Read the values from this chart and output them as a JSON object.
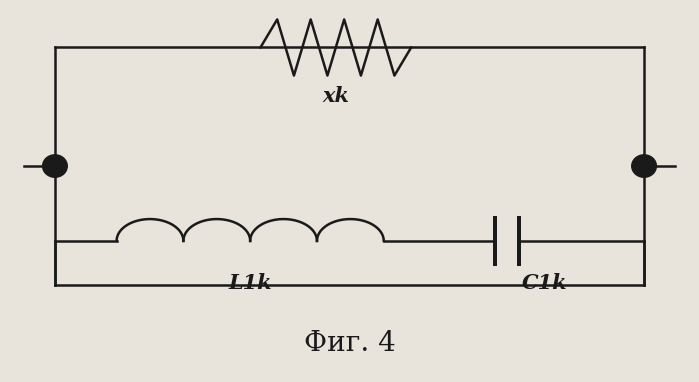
{
  "title": "Фиг. 4",
  "bg_color": "#e8e4dc",
  "line_color": "#1a1a1a",
  "text_color": "#1a1a1a",
  "label_xk": "xk",
  "label_l1k": "L1k",
  "label_c1k": "C1k",
  "title_fontsize": 20,
  "label_fontsize": 15
}
